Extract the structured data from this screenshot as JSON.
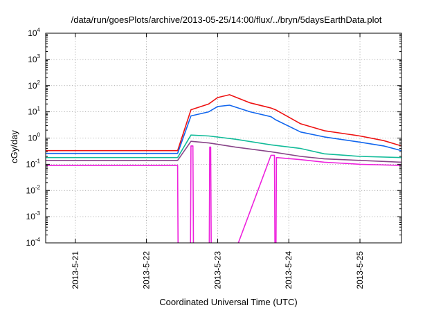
{
  "chart_data": {
    "type": "line",
    "title": "/data/run/goesPlots/archive/2013-05-25/14:00/flux/../bryn/5daysEarthData.plot",
    "xlabel": "Coordinated Universal Time (UTC)",
    "ylabel": "cGy/day",
    "yscale": "log",
    "ylim": [
      0.0001,
      10000
    ],
    "xlim": [
      "2013-05-20T14:00",
      "2013-05-25T14:00"
    ],
    "x_ticks": [
      "2013-5-21",
      "2013-5-22",
      "2013-5-23",
      "2013-5-24",
      "2013-5-25"
    ],
    "y_ticks": [
      {
        "value": 0.0001,
        "base": "10",
        "exp": "-4"
      },
      {
        "value": 0.001,
        "base": "10",
        "exp": "-3"
      },
      {
        "value": 0.01,
        "base": "10",
        "exp": "-2"
      },
      {
        "value": 0.1,
        "base": "10",
        "exp": "-1"
      },
      {
        "value": 1,
        "base": "10",
        "exp": "0"
      },
      {
        "value": 10,
        "base": "10",
        "exp": "1"
      },
      {
        "value": 100,
        "base": "10",
        "exp": "2"
      },
      {
        "value": 1000,
        "base": "10",
        "exp": "3"
      },
      {
        "value": 10000,
        "base": "10",
        "exp": "4"
      }
    ],
    "grid": true,
    "legend": "none",
    "series": [
      {
        "color": "#ee1111",
        "x": [
          "2013-05-20T14:00",
          "2013-05-22T10:30",
          "2013-05-22T15:00",
          "2013-05-22T21:00",
          "2013-05-23T00:00",
          "2013-05-23T04:00",
          "2013-05-23T11:00",
          "2013-05-23T18:00",
          "2013-05-23T19:30",
          "2013-05-24T04:00",
          "2013-05-24T12:00",
          "2013-05-25T00:00",
          "2013-05-25T08:00",
          "2013-05-25T14:00"
        ],
        "y": [
          0.33,
          0.33,
          12,
          20,
          35,
          45,
          22,
          14,
          12,
          3.5,
          1.9,
          1.2,
          0.8,
          0.5
        ]
      },
      {
        "color": "#1166ee",
        "x": [
          "2013-05-20T14:00",
          "2013-05-22T10:30",
          "2013-05-22T15:00",
          "2013-05-22T21:00",
          "2013-05-23T00:00",
          "2013-05-23T04:00",
          "2013-05-23T11:00",
          "2013-05-23T18:00",
          "2013-05-23T19:30",
          "2013-05-24T04:00",
          "2013-05-24T12:00",
          "2013-05-25T00:00",
          "2013-05-25T08:00",
          "2013-05-25T14:00"
        ],
        "y": [
          0.26,
          0.26,
          7,
          10,
          16,
          18,
          10,
          6.5,
          5,
          1.7,
          1.1,
          0.7,
          0.5,
          0.33
        ]
      },
      {
        "color": "#11bb99",
        "x": [
          "2013-05-20T14:00",
          "2013-05-22T10:30",
          "2013-05-22T15:00",
          "2013-05-22T21:00",
          "2013-05-23T06:00",
          "2013-05-23T18:00",
          "2013-05-24T04:00",
          "2013-05-24T12:00",
          "2013-05-25T00:00",
          "2013-05-25T14:00"
        ],
        "y": [
          0.18,
          0.18,
          1.3,
          1.2,
          0.9,
          0.55,
          0.4,
          0.25,
          0.2,
          0.18
        ]
      },
      {
        "color": "#884488",
        "x": [
          "2013-05-20T14:00",
          "2013-05-22T10:30",
          "2013-05-22T15:00",
          "2013-05-22T21:00",
          "2013-05-23T06:00",
          "2013-05-23T18:00",
          "2013-05-24T04:00",
          "2013-05-24T12:00",
          "2013-05-25T00:00",
          "2013-05-25T14:00"
        ],
        "y": [
          0.14,
          0.14,
          0.75,
          0.65,
          0.45,
          0.3,
          0.2,
          0.16,
          0.14,
          0.12
        ]
      },
      {
        "color": "#ee22dd",
        "x": [
          "2013-05-20T14:00",
          "2013-05-22T10:30",
          "2013-05-22T10:40",
          "2013-05-22T14:50",
          "2013-05-22T15:00",
          "2013-05-22T15:40",
          "2013-05-22T15:50",
          "2013-05-22T21:10",
          "2013-05-22T21:20",
          "2013-05-22T21:40",
          "2013-05-22T21:50",
          "2013-05-23T06:00",
          "2013-05-23T18:00",
          "2013-05-23T19:10",
          "2013-05-23T19:20",
          "2013-05-23T19:40",
          "2013-05-23T19:50",
          "2013-05-24T04:00",
          "2013-05-24T12:00",
          "2013-05-25T00:00",
          "2013-05-25T14:00"
        ],
        "y": [
          0.09,
          0.09,
          5e-05,
          5e-05,
          0.5,
          0.5,
          5e-05,
          5e-05,
          0.45,
          0.45,
          5e-05,
          5e-05,
          0.22,
          0.22,
          5e-05,
          5e-05,
          0.18,
          0.15,
          0.12,
          0.1,
          0.09
        ]
      }
    ]
  }
}
